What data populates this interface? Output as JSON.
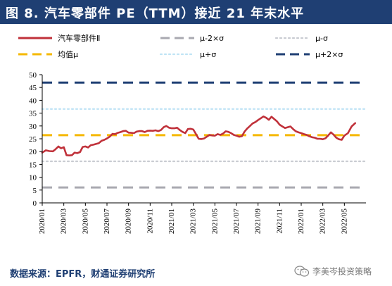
{
  "title": "图 8.  汽车零部件 PE（TTM）接近 21 年末水平",
  "source": "数据来源：EPFR，财通证券研究所",
  "watermark": {
    "text": "李美岑投资策略",
    "icon": "wechat-icon"
  },
  "colors": {
    "title_bg": "#1f3f73",
    "pe_line": "#c0313a",
    "mean": "#f5b800",
    "minus2sd": "#a9a9b0",
    "minus1sd": "#c9ccd2",
    "plus1sd": "#bfe3f5",
    "plus2sd": "#1f3f73",
    "source_text": "#1f3f73"
  },
  "chart_data": {
    "type": "line",
    "title": "",
    "xlabel": "",
    "ylabel": "",
    "ylim": [
      0,
      50
    ],
    "yticks": [
      0,
      5,
      10,
      15,
      20,
      25,
      30,
      35,
      40,
      45,
      50
    ],
    "grid": false,
    "legend_position": "top",
    "xtick_labels": [
      "2020/01",
      "2020/03",
      "2020/05",
      "2020/07",
      "2020/09",
      "2020/11",
      "2021/01",
      "2021/03",
      "2021/05",
      "2021/07",
      "2021/09",
      "2021/11",
      "2022/01",
      "2022/03",
      "2022/05"
    ],
    "x_range": [
      "2020/01",
      "2022/06"
    ],
    "series": [
      {
        "name": "汽车零部件Ⅱ",
        "style": "solid",
        "color": "#c0313a",
        "points": [
          [
            "2020/01",
            19.6
          ],
          [
            "2020/01",
            20.5
          ],
          [
            "2020/01",
            20.2
          ],
          [
            "2020/02",
            20.1
          ],
          [
            "2020/02",
            21.0
          ],
          [
            "2020/02",
            22.0
          ],
          [
            "2020/02",
            21.3
          ],
          [
            "2020/03",
            21.7
          ],
          [
            "2020/03",
            18.6
          ],
          [
            "2020/03",
            18.5
          ],
          [
            "2020/03",
            18.6
          ],
          [
            "2020/04",
            19.6
          ],
          [
            "2020/04",
            19.4
          ],
          [
            "2020/04",
            19.8
          ],
          [
            "2020/04",
            21.8
          ],
          [
            "2020/05",
            22.0
          ],
          [
            "2020/05",
            21.6
          ],
          [
            "2020/05",
            22.5
          ],
          [
            "2020/05",
            22.7
          ],
          [
            "2020/06",
            23.0
          ],
          [
            "2020/06",
            23.3
          ],
          [
            "2020/06",
            24.2
          ],
          [
            "2020/06",
            24.6
          ],
          [
            "2020/07",
            25.1
          ],
          [
            "2020/07",
            25.8
          ],
          [
            "2020/07",
            26.9
          ],
          [
            "2020/07",
            26.8
          ],
          [
            "2020/08",
            27.3
          ],
          [
            "2020/08",
            27.6
          ],
          [
            "2020/08",
            28.0
          ],
          [
            "2020/08",
            28.1
          ],
          [
            "2020/09",
            27.4
          ],
          [
            "2020/09",
            27.3
          ],
          [
            "2020/09",
            27.2
          ],
          [
            "2020/09",
            27.8
          ],
          [
            "2020/10",
            28.0
          ],
          [
            "2020/10",
            28.0
          ],
          [
            "2020/10",
            27.6
          ],
          [
            "2020/10",
            28.1
          ],
          [
            "2020/11",
            28.2
          ],
          [
            "2020/11",
            28.1
          ],
          [
            "2020/11",
            28.3
          ],
          [
            "2020/11",
            28.0
          ],
          [
            "2020/12",
            28.4
          ],
          [
            "2020/12",
            29.5
          ],
          [
            "2020/12",
            30.0
          ],
          [
            "2020/12",
            29.3
          ],
          [
            "2021/01",
            29.1
          ],
          [
            "2021/01",
            29.1
          ],
          [
            "2021/01",
            29.3
          ],
          [
            "2021/01",
            28.4
          ],
          [
            "2021/02",
            27.7
          ],
          [
            "2021/02",
            27.2
          ],
          [
            "2021/02",
            28.8
          ],
          [
            "2021/02",
            28.9
          ],
          [
            "2021/03",
            28.6
          ],
          [
            "2021/03",
            26.8
          ],
          [
            "2021/03",
            25.0
          ],
          [
            "2021/03",
            24.9
          ],
          [
            "2021/04",
            25.1
          ],
          [
            "2021/04",
            25.8
          ],
          [
            "2021/04",
            26.5
          ],
          [
            "2021/04",
            26.3
          ],
          [
            "2021/05",
            26.2
          ],
          [
            "2021/05",
            26.8
          ],
          [
            "2021/05",
            26.5
          ],
          [
            "2021/05",
            27.0
          ],
          [
            "2021/06",
            27.9
          ],
          [
            "2021/06",
            27.7
          ],
          [
            "2021/06",
            27.2
          ],
          [
            "2021/06",
            26.5
          ],
          [
            "2021/07",
            26.2
          ],
          [
            "2021/07",
            25.8
          ],
          [
            "2021/07",
            26.0
          ],
          [
            "2021/07",
            27.8
          ],
          [
            "2021/08",
            29.0
          ],
          [
            "2021/08",
            30.0
          ],
          [
            "2021/08",
            31.0
          ],
          [
            "2021/08",
            31.5
          ],
          [
            "2021/09",
            32.3
          ],
          [
            "2021/09",
            33.0
          ],
          [
            "2021/09",
            33.7
          ],
          [
            "2021/09",
            33.2
          ],
          [
            "2021/10",
            32.4
          ],
          [
            "2021/10",
            33.6
          ],
          [
            "2021/10",
            32.7
          ],
          [
            "2021/10",
            31.8
          ],
          [
            "2021/11",
            30.5
          ],
          [
            "2021/11",
            29.8
          ],
          [
            "2021/11",
            29.2
          ],
          [
            "2021/11",
            29.5
          ],
          [
            "2021/12",
            29.8
          ],
          [
            "2021/12",
            28.8
          ],
          [
            "2021/12",
            27.9
          ],
          [
            "2021/12",
            27.5
          ],
          [
            "2022/01",
            27.2
          ],
          [
            "2022/01",
            26.8
          ],
          [
            "2022/01",
            26.5
          ],
          [
            "2022/01",
            26.0
          ],
          [
            "2022/02",
            25.6
          ],
          [
            "2022/02",
            25.4
          ],
          [
            "2022/02",
            25.0
          ],
          [
            "2022/02",
            25.0
          ],
          [
            "2022/03",
            24.8
          ],
          [
            "2022/03",
            25.2
          ],
          [
            "2022/03",
            26.3
          ],
          [
            "2022/03",
            27.5
          ],
          [
            "2022/04",
            26.6
          ],
          [
            "2022/04",
            25.4
          ],
          [
            "2022/04",
            24.8
          ],
          [
            "2022/04",
            24.6
          ],
          [
            "2022/05",
            26.2
          ],
          [
            "2022/05",
            27.2
          ],
          [
            "2022/05",
            29.8
          ],
          [
            "2022/06",
            31.1
          ]
        ]
      },
      {
        "name": "μ-2×σ",
        "style": "dashed",
        "color": "#a9a9b0",
        "values": [
          6.0
        ]
      },
      {
        "name": "μ-σ",
        "style": "dotted",
        "color": "#c9ccd2",
        "values": [
          16.2
        ]
      },
      {
        "name": "均值μ",
        "style": "dashed",
        "color": "#f5b800",
        "values": [
          26.4
        ]
      },
      {
        "name": "μ+σ",
        "style": "dotted",
        "color": "#bfe3f5",
        "values": [
          36.6
        ]
      },
      {
        "name": "μ+2×σ",
        "style": "dashed",
        "color": "#1f3f73",
        "values": [
          46.9
        ]
      }
    ]
  }
}
